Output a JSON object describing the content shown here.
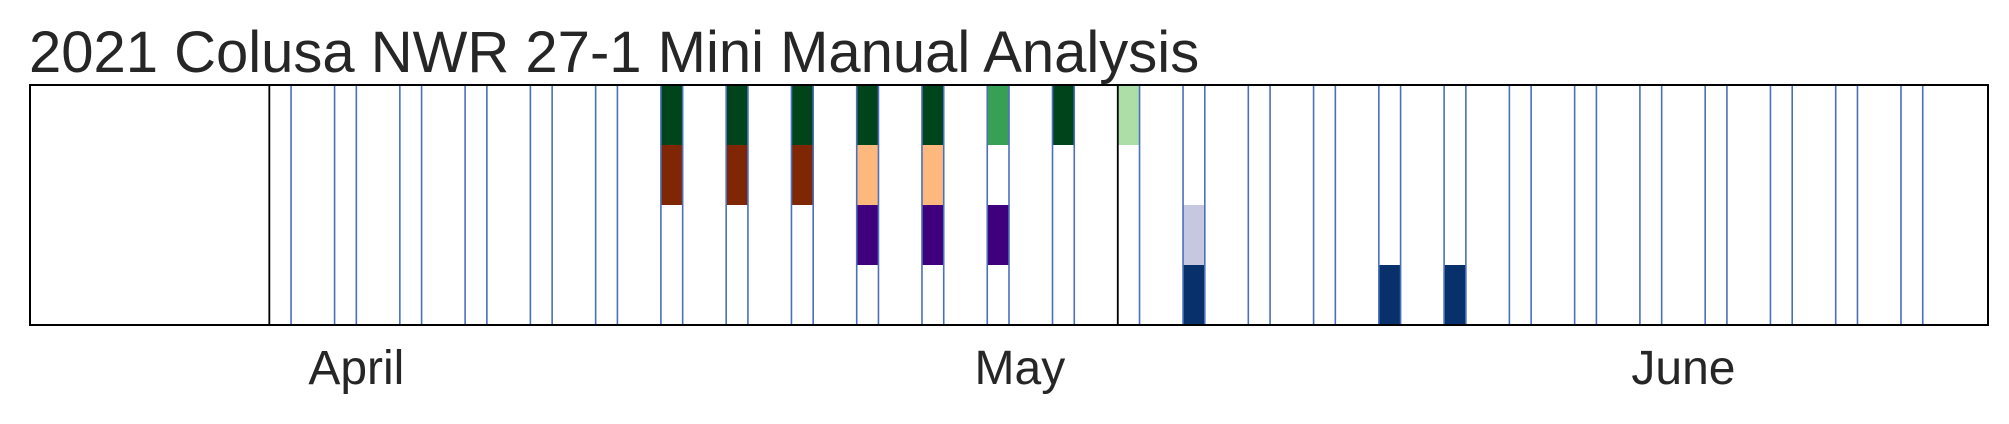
{
  "chart_data": {
    "type": "heatmap",
    "title": "2021 Colusa NWR 27-1 Mini Manual Analysis",
    "xlabel": "",
    "ylabel": "",
    "month_labels": [
      "April",
      "May",
      "June"
    ],
    "date_range": [
      "2021-04-01",
      "2021-06-30"
    ],
    "survey_dates": [
      "2021-04-12",
      "2021-04-15",
      "2021-04-18",
      "2021-04-21",
      "2021-04-24",
      "2021-04-27",
      "2021-04-30",
      "2021-05-03",
      "2021-05-06",
      "2021-05-09",
      "2021-05-12",
      "2021-05-15",
      "2021-05-18",
      "2021-05-21",
      "2021-05-24",
      "2021-05-27",
      "2021-05-30",
      "2021-06-02",
      "2021-06-05",
      "2021-06-08",
      "2021-06-11",
      "2021-06-14",
      "2021-06-17",
      "2021-06-20",
      "2021-06-23",
      "2021-06-26"
    ],
    "divider_dates": [
      "2021-04-11",
      "2021-05-20"
    ],
    "cells": [
      {
        "date": "2021-04-30",
        "row": 0,
        "color": "#00441b"
      },
      {
        "date": "2021-04-30",
        "row": 1,
        "color": "#7f2704"
      },
      {
        "date": "2021-05-03",
        "row": 0,
        "color": "#00441b"
      },
      {
        "date": "2021-05-03",
        "row": 1,
        "color": "#7f2704"
      },
      {
        "date": "2021-05-06",
        "row": 0,
        "color": "#00441b"
      },
      {
        "date": "2021-05-06",
        "row": 1,
        "color": "#7f2704"
      },
      {
        "date": "2021-05-09",
        "row": 0,
        "color": "#00441b"
      },
      {
        "date": "2021-05-09",
        "row": 1,
        "color": "#fdb97d"
      },
      {
        "date": "2021-05-09",
        "row": 2,
        "color": "#3f007d"
      },
      {
        "date": "2021-05-12",
        "row": 0,
        "color": "#00441b"
      },
      {
        "date": "2021-05-12",
        "row": 1,
        "color": "#fdb97d"
      },
      {
        "date": "2021-05-12",
        "row": 2,
        "color": "#3f007d"
      },
      {
        "date": "2021-05-15",
        "row": 0,
        "color": "#37a055"
      },
      {
        "date": "2021-05-15",
        "row": 2,
        "color": "#3f007d"
      },
      {
        "date": "2021-05-18",
        "row": 0,
        "color": "#00441b"
      },
      {
        "date": "2021-05-21",
        "row": 0,
        "color": "#aedea7"
      },
      {
        "date": "2021-05-24",
        "row": 2,
        "color": "#c6c7e1"
      },
      {
        "date": "2021-05-24",
        "row": 3,
        "color": "#08306b"
      },
      {
        "date": "2021-06-02",
        "row": 3,
        "color": "#08306b"
      },
      {
        "date": "2021-06-05",
        "row": 3,
        "color": "#08306b"
      }
    ],
    "rows": 4,
    "grid": false,
    "legend": "none"
  }
}
